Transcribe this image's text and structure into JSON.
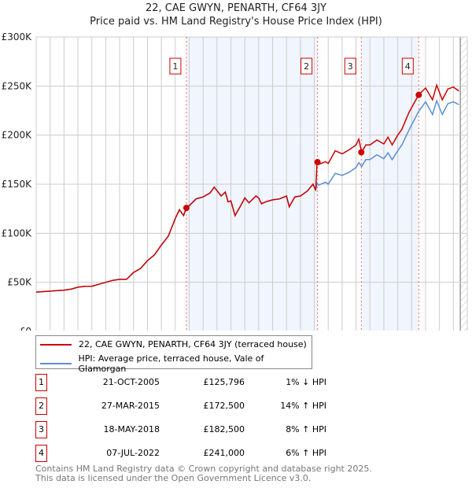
{
  "chart_data": {
    "type": "line",
    "title": "22, CAE GWYN, PENARTH, CF64 3JY",
    "subtitle": "Price paid vs. HM Land Registry's House Price Index (HPI)",
    "xlim": [
      1995,
      2026
    ],
    "ylim": [
      0,
      300000
    ],
    "x_ticks": [
      "1995",
      "1996",
      "1997",
      "1998",
      "1999",
      "2000",
      "2001",
      "2002",
      "2003",
      "2004",
      "2005",
      "2006",
      "2007",
      "2008",
      "2009",
      "2010",
      "2011",
      "2012",
      "2013",
      "2014",
      "2015",
      "2016",
      "2017",
      "2018",
      "2019",
      "2020",
      "2021",
      "2022",
      "2023",
      "2024",
      "2025",
      "2026"
    ],
    "y_ticks": [
      {
        "v": 0,
        "label": "£0"
      },
      {
        "v": 50000,
        "label": "£50K"
      },
      {
        "v": 100000,
        "label": "£100K"
      },
      {
        "v": 150000,
        "label": "£150K"
      },
      {
        "v": 200000,
        "label": "£200K"
      },
      {
        "v": 250000,
        "label": "£250K"
      },
      {
        "v": 300000,
        "label": "£300K"
      }
    ],
    "grid": true,
    "x": [
      1995,
      1996,
      1997,
      1997.5,
      1998,
      1998.5,
      1999,
      1999.5,
      2000,
      2000.5,
      2001,
      2001.5,
      2002,
      2002.5,
      2003,
      2003.5,
      2004,
      2004.5,
      2005,
      2005.3,
      2005.6,
      2005.8,
      2006,
      2006.5,
      2007,
      2007.5,
      2007.8,
      2008.3,
      2008.6,
      2008.8,
      2009,
      2009.3,
      2009.7,
      2010,
      2010.3,
      2010.8,
      2011,
      2011.2,
      2011.5,
      2012,
      2012.5,
      2013,
      2013.2,
      2013.6,
      2014,
      2014.5,
      2014.9,
      2015.1,
      2015.2,
      2015.3,
      2015.8,
      2016,
      2016.5,
      2017,
      2017.5,
      2018,
      2018.2,
      2018.4,
      2018.7,
      2019,
      2019.5,
      2020,
      2020.3,
      2020.6,
      2021,
      2021.3,
      2021.8,
      2022.5,
      2023,
      2023.5,
      2023.8,
      2024.2,
      2024.6,
      2025,
      2025.4
    ],
    "series": [
      {
        "name": "22, CAE GWYN, PENARTH, CF64 3JY (terraced house)",
        "color": "#cc0000",
        "values_k": [
          40,
          41,
          42,
          43,
          45,
          46,
          46,
          48,
          50,
          52,
          53,
          53,
          60,
          64,
          72,
          78,
          88,
          97,
          115,
          124,
          118,
          125.8,
          128,
          135,
          137,
          141,
          147,
          138,
          142,
          132,
          133,
          118,
          128,
          136,
          131,
          138,
          136,
          130,
          132,
          134,
          135,
          138,
          127,
          137,
          138,
          143,
          150,
          144,
          172.5,
          170,
          173,
          171,
          184,
          181,
          185,
          190,
          196,
          182.5,
          190,
          190,
          195,
          191,
          198,
          190,
          200,
          206,
          223,
          241,
          248,
          236,
          251,
          236,
          247,
          249,
          245
        ]
      },
      {
        "name": "HPI: Average price, terraced house, Vale of Glamorgan",
        "color": "#5b8fd4",
        "values_k": [
          40,
          41,
          42,
          43,
          45,
          46,
          46,
          48,
          50,
          52,
          53,
          53,
          60,
          64,
          72,
          78,
          88,
          97,
          115,
          124,
          118,
          127,
          128,
          135,
          137,
          141,
          147,
          138,
          142,
          132,
          133,
          118,
          128,
          136,
          131,
          138,
          136,
          130,
          132,
          134,
          135,
          138,
          127,
          137,
          138,
          143,
          150,
          144,
          151,
          149,
          152,
          150,
          161,
          159,
          162,
          167,
          172,
          168,
          175,
          175,
          180,
          176,
          182,
          175,
          184,
          190,
          205,
          224,
          234,
          221,
          235,
          221,
          232,
          234,
          231
        ]
      }
    ],
    "sales": [
      {
        "n": "1",
        "x": 2005.8,
        "price_k": 125.796
      },
      {
        "n": "2",
        "x": 2015.23,
        "price_k": 172.5
      },
      {
        "n": "3",
        "x": 2018.38,
        "price_k": 182.5
      },
      {
        "n": "4",
        "x": 2022.51,
        "price_k": 241
      }
    ],
    "shaded_ranges": [
      [
        2005.8,
        2015.23
      ],
      [
        2018.38,
        2022.51
      ]
    ],
    "hatched_from": 2025.5,
    "legend_placement": "bottom"
  },
  "legend": {
    "property": "22, CAE GWYN, PENARTH, CF64 3JY (terraced house)",
    "hpi": "HPI: Average price, terraced house, Vale of Glamorgan"
  },
  "table": [
    {
      "n": "1",
      "date": "21-OCT-2005",
      "price": "£125,796",
      "hpi": "1% ↓ HPI"
    },
    {
      "n": "2",
      "date": "27-MAR-2015",
      "price": "£172,500",
      "hpi": "14% ↑ HPI"
    },
    {
      "n": "3",
      "date": "18-MAY-2018",
      "price": "£182,500",
      "hpi": "8% ↑ HPI"
    },
    {
      "n": "4",
      "date": "07-JUL-2022",
      "price": "£241,000",
      "hpi": "6% ↑ HPI"
    }
  ],
  "footer": [
    "Contains HM Land Registry data © Crown copyright and database right 2025.",
    "This data is licensed under the Open Government Licence v3.0."
  ]
}
